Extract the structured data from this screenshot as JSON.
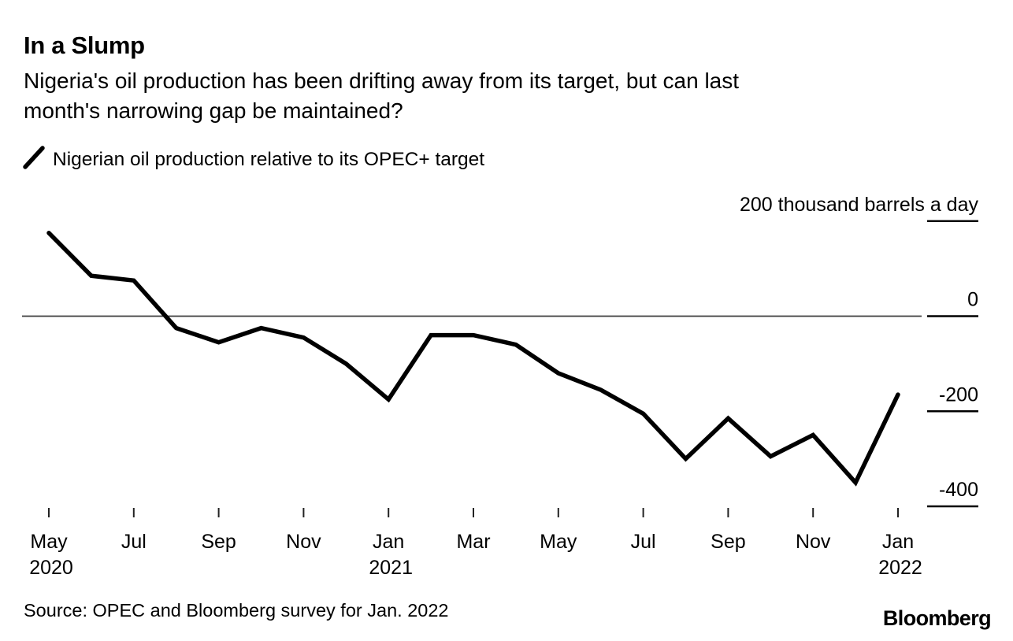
{
  "header": {
    "title": "In a Slump",
    "subtitle_line1": "Nigeria's oil production has been drifting away from its target, but can last",
    "subtitle_line2": "month's narrowing gap be maintained?"
  },
  "legend": {
    "label": "Nigerian oil production relative to its OPEC+ target",
    "line_color": "#000000"
  },
  "source": "Source: OPEC and Bloomberg survey for Jan. 2022",
  "branding": "Bloomberg",
  "chart_data": {
    "type": "line",
    "title": "In a Slump",
    "series_name": "Nigerian oil production relative to its OPEC+ target",
    "unit": "thousand barrels a day",
    "x": [
      "May 2020",
      "Jun 2020",
      "Jul 2020",
      "Aug 2020",
      "Sep 2020",
      "Oct 2020",
      "Nov 2020",
      "Dec 2020",
      "Jan 2021",
      "Feb 2021",
      "Mar 2021",
      "Apr 2021",
      "May 2021",
      "Jun 2021",
      "Jul 2021",
      "Aug 2021",
      "Sep 2021",
      "Oct 2021",
      "Nov 2021",
      "Dec 2021",
      "Jan 2022"
    ],
    "values": [
      175,
      85,
      75,
      -25,
      -55,
      -25,
      -45,
      -100,
      -175,
      -40,
      -40,
      -60,
      -120,
      -155,
      -205,
      -300,
      -215,
      -295,
      -250,
      -350,
      -165
    ],
    "y_ticks": [
      {
        "value": 200,
        "label": "200 thousand barrels a day"
      },
      {
        "value": 0,
        "label": "0"
      },
      {
        "value": -200,
        "label": "-200"
      },
      {
        "value": -400,
        "label": "-400"
      }
    ],
    "x_ticks": [
      {
        "index": 0,
        "label": "May",
        "sublabel": "2020"
      },
      {
        "index": 2,
        "label": "Jul"
      },
      {
        "index": 4,
        "label": "Sep"
      },
      {
        "index": 6,
        "label": "Nov"
      },
      {
        "index": 8,
        "label": "Jan",
        "sublabel": "2021"
      },
      {
        "index": 10,
        "label": "Mar"
      },
      {
        "index": 12,
        "label": "May"
      },
      {
        "index": 14,
        "label": "Jul"
      },
      {
        "index": 16,
        "label": "Sep"
      },
      {
        "index": 18,
        "label": "Nov"
      },
      {
        "index": 20,
        "label": "Jan",
        "sublabel": "2022"
      }
    ],
    "ylim": [
      -430,
      230
    ],
    "grid": "zero-axis-only",
    "legend_position": "top-left",
    "line_color": "#000000",
    "axis_color": "#3c3c3c"
  }
}
